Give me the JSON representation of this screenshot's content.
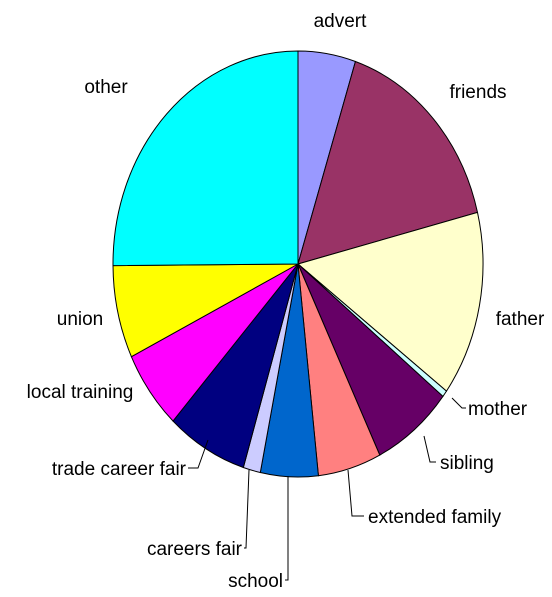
{
  "chart_data": {
    "type": "pie",
    "categories": [
      "advert",
      "friends",
      "father",
      "mother",
      "sibling",
      "extended family",
      "school",
      "careers fair",
      "trade career fair",
      "local training",
      "union",
      "other"
    ],
    "values": [
      5,
      16,
      14,
      0.5,
      7,
      5.5,
      5,
      1.5,
      7,
      6,
      7,
      25
    ],
    "colors": [
      "#9999ff",
      "#993366",
      "#ffffcc",
      "#ccffff",
      "#660066",
      "#ff8080",
      "#0066cc",
      "#ccccff",
      "#000080",
      "#ff00ff",
      "#ffff00",
      "#00ffff"
    ]
  }
}
